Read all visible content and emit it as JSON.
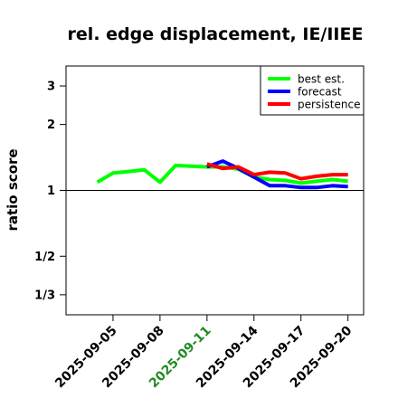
{
  "chart_data": {
    "type": "line",
    "title": "rel. edge displacement, IE/IIEE",
    "xlabel": "",
    "ylabel": "ratio score",
    "y_scale": "log",
    "ylim": [
      0.27,
      3.7
    ],
    "y_ticks": [
      {
        "value": 0.3333,
        "label": "1/3"
      },
      {
        "value": 0.5,
        "label": "1/2"
      },
      {
        "value": 1,
        "label": "1"
      },
      {
        "value": 2,
        "label": "2"
      },
      {
        "value": 3,
        "label": "3"
      }
    ],
    "x_range": [
      "2025-09-02",
      "2025-09-21"
    ],
    "x_ticks": [
      {
        "date": "2025-09-05",
        "label": "2025-09-05",
        "color": "#000000"
      },
      {
        "date": "2025-09-08",
        "label": "2025-09-08",
        "color": "#000000"
      },
      {
        "date": "2025-09-11",
        "label": "2025-09-11",
        "color": "#228B22"
      },
      {
        "date": "2025-09-14",
        "label": "2025-09-14",
        "color": "#000000"
      },
      {
        "date": "2025-09-17",
        "label": "2025-09-17",
        "color": "#000000"
      },
      {
        "date": "2025-09-20",
        "label": "2025-09-20",
        "color": "#000000"
      }
    ],
    "reference_line": 1,
    "legend": {
      "position": "top-right"
    },
    "series": [
      {
        "name": "best est.",
        "color": "#00ff00",
        "points": [
          {
            "x": "2025-09-04",
            "y": 1.09
          },
          {
            "x": "2025-09-05",
            "y": 1.2
          },
          {
            "x": "2025-09-06",
            "y": 1.22
          },
          {
            "x": "2025-09-07",
            "y": 1.24
          },
          {
            "x": "2025-09-08",
            "y": 1.09
          },
          {
            "x": "2025-09-09",
            "y": 1.3
          },
          {
            "x": "2025-09-10",
            "y": 1.29
          },
          {
            "x": "2025-09-11",
            "y": 1.28
          },
          {
            "x": "2025-09-12",
            "y": 1.28
          },
          {
            "x": "2025-09-13",
            "y": 1.25
          },
          {
            "x": "2025-09-14",
            "y": 1.15
          },
          {
            "x": "2025-09-15",
            "y": 1.12
          },
          {
            "x": "2025-09-16",
            "y": 1.11
          },
          {
            "x": "2025-09-17",
            "y": 1.08
          },
          {
            "x": "2025-09-18",
            "y": 1.1
          },
          {
            "x": "2025-09-19",
            "y": 1.12
          },
          {
            "x": "2025-09-20",
            "y": 1.1
          }
        ]
      },
      {
        "name": "forecast",
        "color": "#0000ff",
        "points": [
          {
            "x": "2025-09-11",
            "y": 1.28
          },
          {
            "x": "2025-09-12",
            "y": 1.36
          },
          {
            "x": "2025-09-13",
            "y": 1.26
          },
          {
            "x": "2025-09-14",
            "y": 1.15
          },
          {
            "x": "2025-09-15",
            "y": 1.05
          },
          {
            "x": "2025-09-16",
            "y": 1.05
          },
          {
            "x": "2025-09-17",
            "y": 1.03
          },
          {
            "x": "2025-09-18",
            "y": 1.03
          },
          {
            "x": "2025-09-19",
            "y": 1.05
          },
          {
            "x": "2025-09-20",
            "y": 1.04
          }
        ]
      },
      {
        "name": "persistence",
        "color": "#ff0000",
        "points": [
          {
            "x": "2025-09-11",
            "y": 1.32
          },
          {
            "x": "2025-09-12",
            "y": 1.26
          },
          {
            "x": "2025-09-13",
            "y": 1.28
          },
          {
            "x": "2025-09-14",
            "y": 1.18
          },
          {
            "x": "2025-09-15",
            "y": 1.21
          },
          {
            "x": "2025-09-16",
            "y": 1.2
          },
          {
            "x": "2025-09-17",
            "y": 1.13
          },
          {
            "x": "2025-09-18",
            "y": 1.16
          },
          {
            "x": "2025-09-19",
            "y": 1.18
          },
          {
            "x": "2025-09-20",
            "y": 1.18
          }
        ]
      }
    ]
  }
}
